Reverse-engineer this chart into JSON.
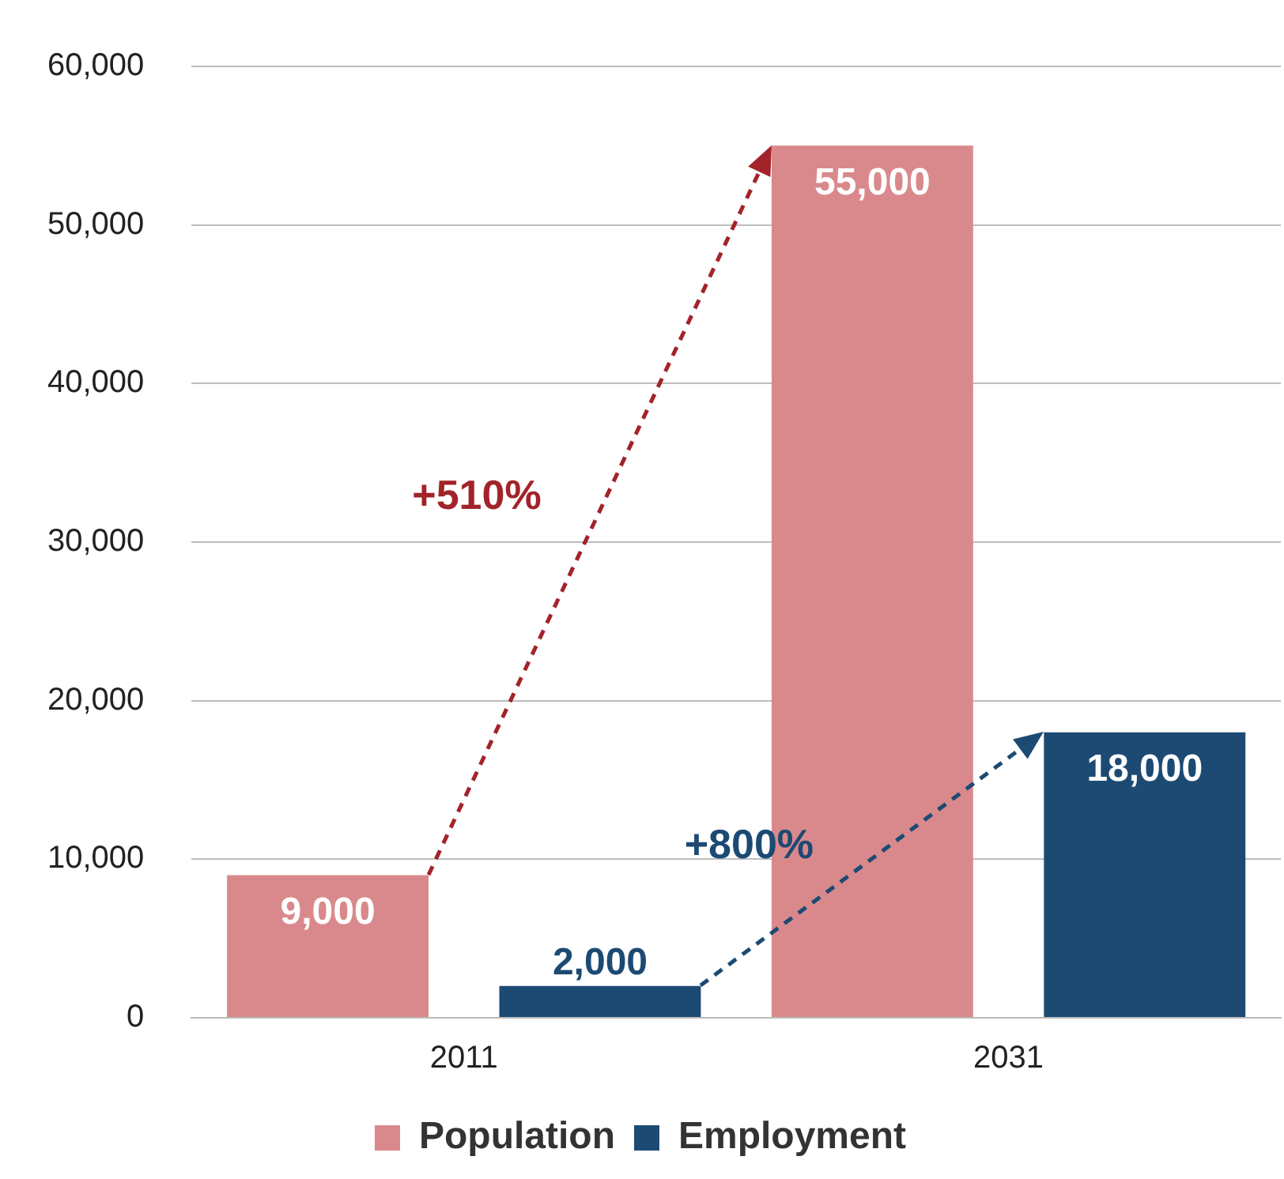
{
  "chart_data": {
    "type": "bar",
    "categories": [
      "2011",
      "2031"
    ],
    "series": [
      {
        "name": "Population",
        "color": "#d9898c",
        "values": [
          9000,
          55000
        ],
        "value_labels": [
          "9,000",
          "55,000"
        ]
      },
      {
        "name": "Employment",
        "color": "#1c4a73",
        "values": [
          2000,
          18000
        ],
        "value_labels": [
          "2,000",
          "18,000"
        ]
      }
    ],
    "annotations": [
      "+510%",
      "+800%"
    ],
    "ylim": [
      0,
      60000
    ],
    "yticks": [
      0,
      {
        "value": 10000,
        "label": "10,000"
      },
      {
        "value": 20000,
        "label": "20,000"
      },
      {
        "value": 30000,
        "label": "30,000"
      },
      {
        "value": 40000,
        "label": "40,000"
      },
      {
        "value": 50000,
        "label": "50,000"
      },
      {
        "value": 60000,
        "label": "60,000"
      }
    ],
    "grid": "y",
    "legend": "bottom"
  }
}
